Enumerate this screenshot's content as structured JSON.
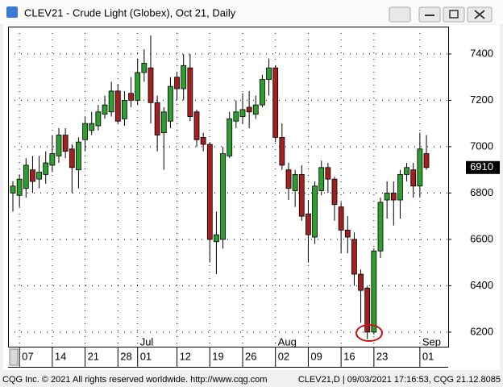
{
  "chart_data": {
    "type": "candlestick",
    "title": "CLEV21 - Crude Light (Globex), Oct 21, Daily",
    "categories": [
      null,
      "07",
      null,
      null,
      null,
      null,
      "14",
      null,
      null,
      null,
      null,
      "21",
      null,
      null,
      null,
      null,
      "28",
      null,
      null,
      "01",
      null,
      null,
      null,
      null,
      null,
      "12",
      null,
      null,
      null,
      null,
      "19",
      null,
      null,
      null,
      null,
      "26",
      null,
      null,
      null,
      null,
      "02",
      null,
      null,
      null,
      null,
      "09",
      null,
      null,
      null,
      null,
      "16",
      null,
      null,
      null,
      null,
      "23",
      null,
      null,
      null,
      null,
      null,
      null,
      "01",
      null
    ],
    "months": [
      null,
      null,
      null,
      null,
      null,
      null,
      null,
      null,
      null,
      null,
      null,
      null,
      null,
      null,
      null,
      null,
      null,
      null,
      null,
      "Jul",
      null,
      null,
      null,
      null,
      null,
      null,
      null,
      null,
      null,
      null,
      null,
      null,
      null,
      null,
      null,
      null,
      null,
      null,
      null,
      null,
      "Aug",
      null,
      null,
      null,
      null,
      null,
      null,
      null,
      null,
      null,
      null,
      null,
      null,
      null,
      null,
      null,
      null,
      null,
      null,
      null,
      null,
      null,
      "Sep",
      null
    ],
    "open": [
      6800,
      6790,
      6820,
      6900,
      6860,
      6880,
      6920,
      6960,
      7050,
      6990,
      6900,
      7030,
      7070,
      7090,
      7140,
      7150,
      7240,
      7120,
      7230,
      7200,
      7320,
      7340,
      7190,
      7060,
      7110,
      7300,
      7250,
      7340,
      7150,
      7040,
      7010,
      6590,
      6600,
      6960,
      7110,
      7130,
      7170,
      7140,
      7180,
      7290,
      7340,
      7040,
      6900,
      6810,
      6880,
      6710,
      6610,
      6810,
      6910,
      6860,
      6740,
      6640,
      6600,
      6450,
      6390,
      6200,
      6550,
      6770,
      6800,
      6770,
      6880,
      6900,
      6830,
      6970
    ],
    "high": [
      6850,
      6880,
      6950,
      6960,
      6960,
      6980,
      7050,
      7080,
      7080,
      7010,
      7040,
      7130,
      7150,
      7180,
      7220,
      7280,
      7270,
      7240,
      7300,
      7380,
      7420,
      7480,
      7220,
      7170,
      7300,
      7320,
      7400,
      7400,
      7160,
      7060,
      7020,
      6720,
      7000,
      7150,
      7200,
      7230,
      7240,
      7220,
      7310,
      7380,
      7350,
      7100,
      6930,
      6900,
      6920,
      6770,
      6850,
      6940,
      6930,
      6870,
      6760,
      6700,
      6630,
      6470,
      6400,
      6560,
      6780,
      6850,
      6850,
      6900,
      6930,
      6930,
      7060,
      7050
    ],
    "low": [
      6720,
      6740,
      6780,
      6800,
      6820,
      6840,
      6890,
      6930,
      6950,
      6800,
      6820,
      6980,
      7050,
      7070,
      7120,
      7130,
      7100,
      7090,
      7170,
      7180,
      7280,
      7100,
      6980,
      6900,
      7080,
      7200,
      7200,
      7110,
      7000,
      6980,
      6500,
      6450,
      6560,
      6950,
      7080,
      7100,
      7080,
      7120,
      7170,
      7220,
      7020,
      6900,
      6770,
      6740,
      6680,
      6500,
      6580,
      6790,
      6800,
      6680,
      6540,
      6540,
      6400,
      6240,
      6170,
      6190,
      6520,
      6690,
      6660,
      6690,
      6850,
      6780,
      6780,
      6900
    ],
    "close": [
      6830,
      6860,
      6920,
      6850,
      6890,
      6930,
      6970,
      7050,
      6980,
      6910,
      7020,
      7100,
      7100,
      7150,
      7180,
      7240,
      7110,
      7200,
      7200,
      7320,
      7360,
      7190,
      7050,
      7150,
      7260,
      7250,
      7350,
      7130,
      7030,
      7010,
      6600,
      6620,
      6970,
      7120,
      7150,
      7160,
      7150,
      7180,
      7290,
      7340,
      7040,
      6920,
      6820,
      6880,
      6700,
      6620,
      6830,
      6910,
      6860,
      6750,
      6640,
      6610,
      6450,
      6380,
      6200,
      6550,
      6760,
      6800,
      6770,
      6880,
      6910,
      6830,
      6990,
      6910
    ],
    "up_color": "#2e9e2e",
    "down_color": "#a32020",
    "ylim": [
      6137,
      7518
    ],
    "yticks": [
      6200,
      6400,
      6600,
      6800,
      7000,
      7200,
      7400
    ],
    "grid": true,
    "last_price": 6910
  },
  "footer": {
    "left": "CQG Inc. © 2021 All rights reserved worldwide. http://www.cqg.com",
    "right": "CLEV21,D | 09/03/2021 17:16:53, CQG 21.12.8085"
  }
}
